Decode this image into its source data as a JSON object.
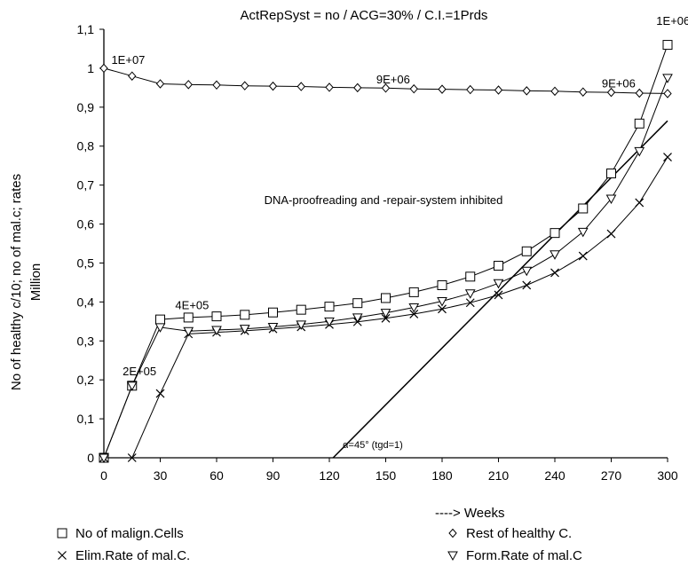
{
  "chart_data": {
    "type": "line",
    "title": "ActRepSyst = no / ACG=30% / C.I.=1Prds",
    "xlabel": "----> Weeks",
    "ylabel_line1": "No of healthy c/10; no of mal.c; rates",
    "ylabel_line2": "Million",
    "xlim": [
      0,
      300
    ],
    "ylim": [
      0,
      1.1
    ],
    "x_ticks": [
      0,
      30,
      60,
      90,
      120,
      150,
      180,
      210,
      240,
      270,
      300
    ],
    "y_ticks": [
      {
        "v": 0,
        "label": "0"
      },
      {
        "v": 0.1,
        "label": "0,1"
      },
      {
        "v": 0.2,
        "label": "0,2"
      },
      {
        "v": 0.3,
        "label": "0,3"
      },
      {
        "v": 0.4,
        "label": "0,4"
      },
      {
        "v": 0.5,
        "label": "0,5"
      },
      {
        "v": 0.6,
        "label": "0,6"
      },
      {
        "v": 0.7,
        "label": "0,7"
      },
      {
        "v": 0.8,
        "label": "0,8"
      },
      {
        "v": 0.9,
        "label": "0,9"
      },
      {
        "v": 1.0,
        "label": "1"
      },
      {
        "v": 1.1,
        "label": "1,1"
      }
    ],
    "grid": false,
    "legend_position": "bottom",
    "series": [
      {
        "name": "No of malign.Cells",
        "marker": "square",
        "x": [
          0,
          15,
          30,
          45,
          60,
          75,
          90,
          105,
          120,
          135,
          150,
          165,
          180,
          195,
          210,
          225,
          240,
          255,
          270,
          285,
          300
        ],
        "y": [
          0,
          0.185,
          0.355,
          0.36,
          0.363,
          0.367,
          0.373,
          0.38,
          0.388,
          0.397,
          0.41,
          0.425,
          0.443,
          0.465,
          0.493,
          0.53,
          0.577,
          0.64,
          0.73,
          0.858,
          1.06
        ]
      },
      {
        "name": "Rest of healthy C.",
        "marker": "diamond",
        "x": [
          0,
          15,
          30,
          45,
          60,
          75,
          90,
          105,
          120,
          135,
          150,
          165,
          180,
          195,
          210,
          225,
          240,
          255,
          270,
          285,
          300
        ],
        "y": [
          1.0,
          0.98,
          0.96,
          0.958,
          0.957,
          0.955,
          0.954,
          0.953,
          0.951,
          0.95,
          0.949,
          0.947,
          0.946,
          0.945,
          0.944,
          0.942,
          0.941,
          0.939,
          0.938,
          0.936,
          0.935
        ]
      },
      {
        "name": "Elim.Rate of mal.C.",
        "marker": "x",
        "x": [
          0,
          15,
          30,
          45,
          60,
          75,
          90,
          105,
          120,
          135,
          150,
          165,
          180,
          195,
          210,
          225,
          240,
          255,
          270,
          285,
          300
        ],
        "y": [
          0,
          0,
          0.165,
          0.318,
          0.322,
          0.326,
          0.331,
          0.336,
          0.342,
          0.349,
          0.358,
          0.369,
          0.382,
          0.398,
          0.418,
          0.443,
          0.475,
          0.518,
          0.575,
          0.655,
          0.772
        ]
      },
      {
        "name": "Form.Rate of mal.C",
        "marker": "triangle-down",
        "x": [
          0,
          15,
          30,
          45,
          60,
          75,
          90,
          105,
          120,
          135,
          150,
          165,
          180,
          195,
          210,
          225,
          240,
          255,
          270,
          285,
          300
        ],
        "y": [
          0,
          0.185,
          0.335,
          0.325,
          0.328,
          0.331,
          0.336,
          0.342,
          0.35,
          0.36,
          0.372,
          0.386,
          0.402,
          0.422,
          0.448,
          0.48,
          0.522,
          0.58,
          0.665,
          0.787,
          0.975
        ]
      }
    ],
    "reference_line": {
      "x1": 122,
      "y1": 0,
      "x2": 300,
      "y2": 0.865
    },
    "annotations": [
      {
        "text": "1E+07",
        "x": 4,
        "y": 1.0
      },
      {
        "text": "9E+06",
        "x": 145,
        "y": 0.95
      },
      {
        "text": "9E+06",
        "x": 265,
        "y": 0.94
      },
      {
        "text": "1E+06",
        "x": 294,
        "y": 1.1
      },
      {
        "text": "4E+05",
        "x": 38,
        "y": 0.37
      },
      {
        "text": "2E+05",
        "x": 10,
        "y": 0.2
      }
    ],
    "dna_annotation": "DNA-proofreading and -repair-system inhibited",
    "alpha_annotation": "α=45° (tgd=1)"
  }
}
